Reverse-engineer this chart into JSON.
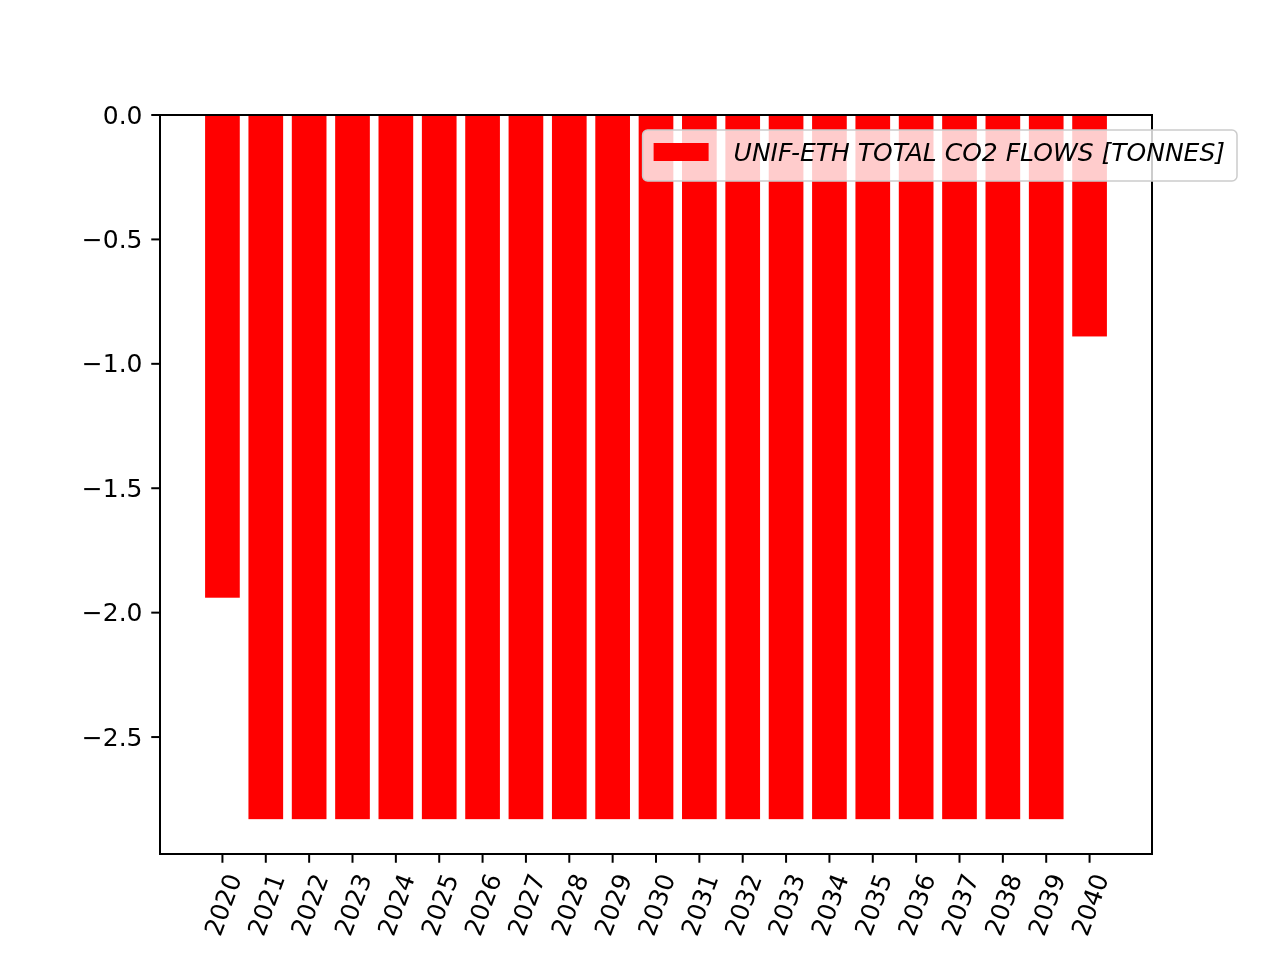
{
  "chart_data": {
    "type": "bar",
    "categories": [
      "2020",
      "2021",
      "2022",
      "2023",
      "2024",
      "2025",
      "2026",
      "2027",
      "2028",
      "2029",
      "2030",
      "2031",
      "2032",
      "2033",
      "2034",
      "2035",
      "2036",
      "2037",
      "2038",
      "2039",
      "2040"
    ],
    "series": [
      {
        "name": "UNIF-ETH TOTAL CO2 FLOWS [TONNES]",
        "color": "#ff0000",
        "values": [
          -1.94,
          -2.83,
          -2.83,
          -2.83,
          -2.83,
          -2.83,
          -2.83,
          -2.83,
          -2.83,
          -2.83,
          -2.83,
          -2.83,
          -2.83,
          -2.83,
          -2.83,
          -2.83,
          -2.83,
          -2.83,
          -2.83,
          -2.83,
          -0.89
        ]
      }
    ],
    "ylim": [
      -2.97,
      0
    ],
    "yticks": [
      {
        "value": 0,
        "label": "0.0"
      },
      {
        "value": -0.5,
        "label": "−0.5"
      },
      {
        "value": -1,
        "label": "−1.0"
      },
      {
        "value": -1.5,
        "label": "−1.5"
      },
      {
        "value": -2,
        "label": "−2.0"
      },
      {
        "value": -2.5,
        "label": "−2.5"
      }
    ],
    "legend": "top right"
  }
}
